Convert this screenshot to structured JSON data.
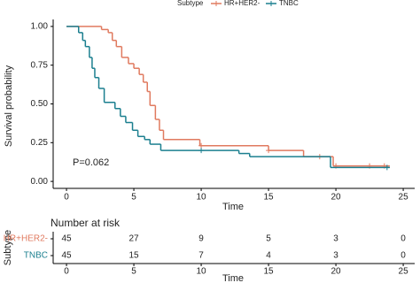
{
  "chart_data": {
    "type": "step",
    "legend_title": "Subtype",
    "xlabel": "Time",
    "ylabel": "Survival probability",
    "annotation": "P=0.062",
    "xlim": [
      -0.99,
      25.85
    ],
    "ylim": [
      -0.045,
      1.045
    ],
    "xticks": [
      0,
      5,
      10,
      15,
      20,
      25
    ],
    "yticks": [
      {
        "value": 0,
        "label": "0.00"
      },
      {
        "value": 0.25,
        "label": "0.25"
      },
      {
        "value": 0.5,
        "label": "0.50"
      },
      {
        "value": 0.75,
        "label": "0.75"
      },
      {
        "value": 1,
        "label": "1.00"
      }
    ],
    "series": [
      {
        "name": "HR+HER2-",
        "color": "#E07A5F",
        "x": [
          0,
          2.6,
          3.1,
          3.4,
          3.7,
          4.1,
          4.6,
          5.0,
          5.4,
          5.7,
          6.0,
          6.2,
          6.6,
          6.9,
          7.2,
          9.9,
          15.0,
          17.6,
          19.8,
          24.0
        ],
        "values": [
          1.0,
          0.98,
          0.96,
          0.91,
          0.87,
          0.8,
          0.76,
          0.73,
          0.69,
          0.64,
          0.58,
          0.49,
          0.4,
          0.33,
          0.27,
          0.23,
          0.2,
          0.16,
          0.1,
          0.1
        ],
        "censor_x": [
          10,
          15,
          18.8,
          20,
          22.5,
          23.6
        ]
      },
      {
        "name": "TNBC",
        "color": "#1B7F8F",
        "x": [
          0,
          0.9,
          1.2,
          1.4,
          1.7,
          1.9,
          2.1,
          2.4,
          2.8,
          3.6,
          4.0,
          4.4,
          4.9,
          5.3,
          5.8,
          6.2,
          7.0,
          12.8,
          13.6,
          19.6,
          24.0
        ],
        "values": [
          1.0,
          0.96,
          0.91,
          0.87,
          0.8,
          0.73,
          0.67,
          0.6,
          0.51,
          0.47,
          0.42,
          0.38,
          0.33,
          0.29,
          0.27,
          0.24,
          0.2,
          0.18,
          0.16,
          0.09,
          0.09
        ],
        "censor_x": [
          10,
          23.8
        ]
      }
    ],
    "risk_table": {
      "title": "Number at risk",
      "ylabel": "Subtype",
      "xlabel": "Time",
      "counts": [
        [
          45,
          27,
          9,
          5,
          3,
          0
        ],
        [
          45,
          15,
          7,
          4,
          3,
          0
        ]
      ]
    }
  }
}
